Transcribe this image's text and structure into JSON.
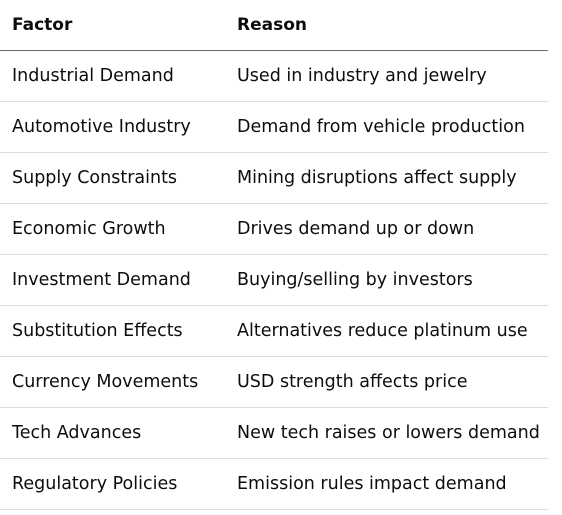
{
  "table": {
    "headers": [
      "Factor",
      "Reason"
    ],
    "rows": [
      {
        "factor": "Industrial Demand",
        "reason": "Used in industry and jewelry"
      },
      {
        "factor": "Automotive Industry",
        "reason": "Demand from vehicle production"
      },
      {
        "factor": "Supply Constraints",
        "reason": "Mining disruptions affect supply"
      },
      {
        "factor": "Economic Growth",
        "reason": "Drives demand up or down"
      },
      {
        "factor": "Investment Demand",
        "reason": "Buying/selling by investors"
      },
      {
        "factor": "Substitution Effects",
        "reason": "Alternatives reduce platinum use"
      },
      {
        "factor": "Currency Movements",
        "reason": "USD strength affects price"
      },
      {
        "factor": "Tech Advances",
        "reason": "New tech raises or lowers demand"
      },
      {
        "factor": "Regulatory Policies",
        "reason": "Emission rules impact demand"
      }
    ]
  }
}
